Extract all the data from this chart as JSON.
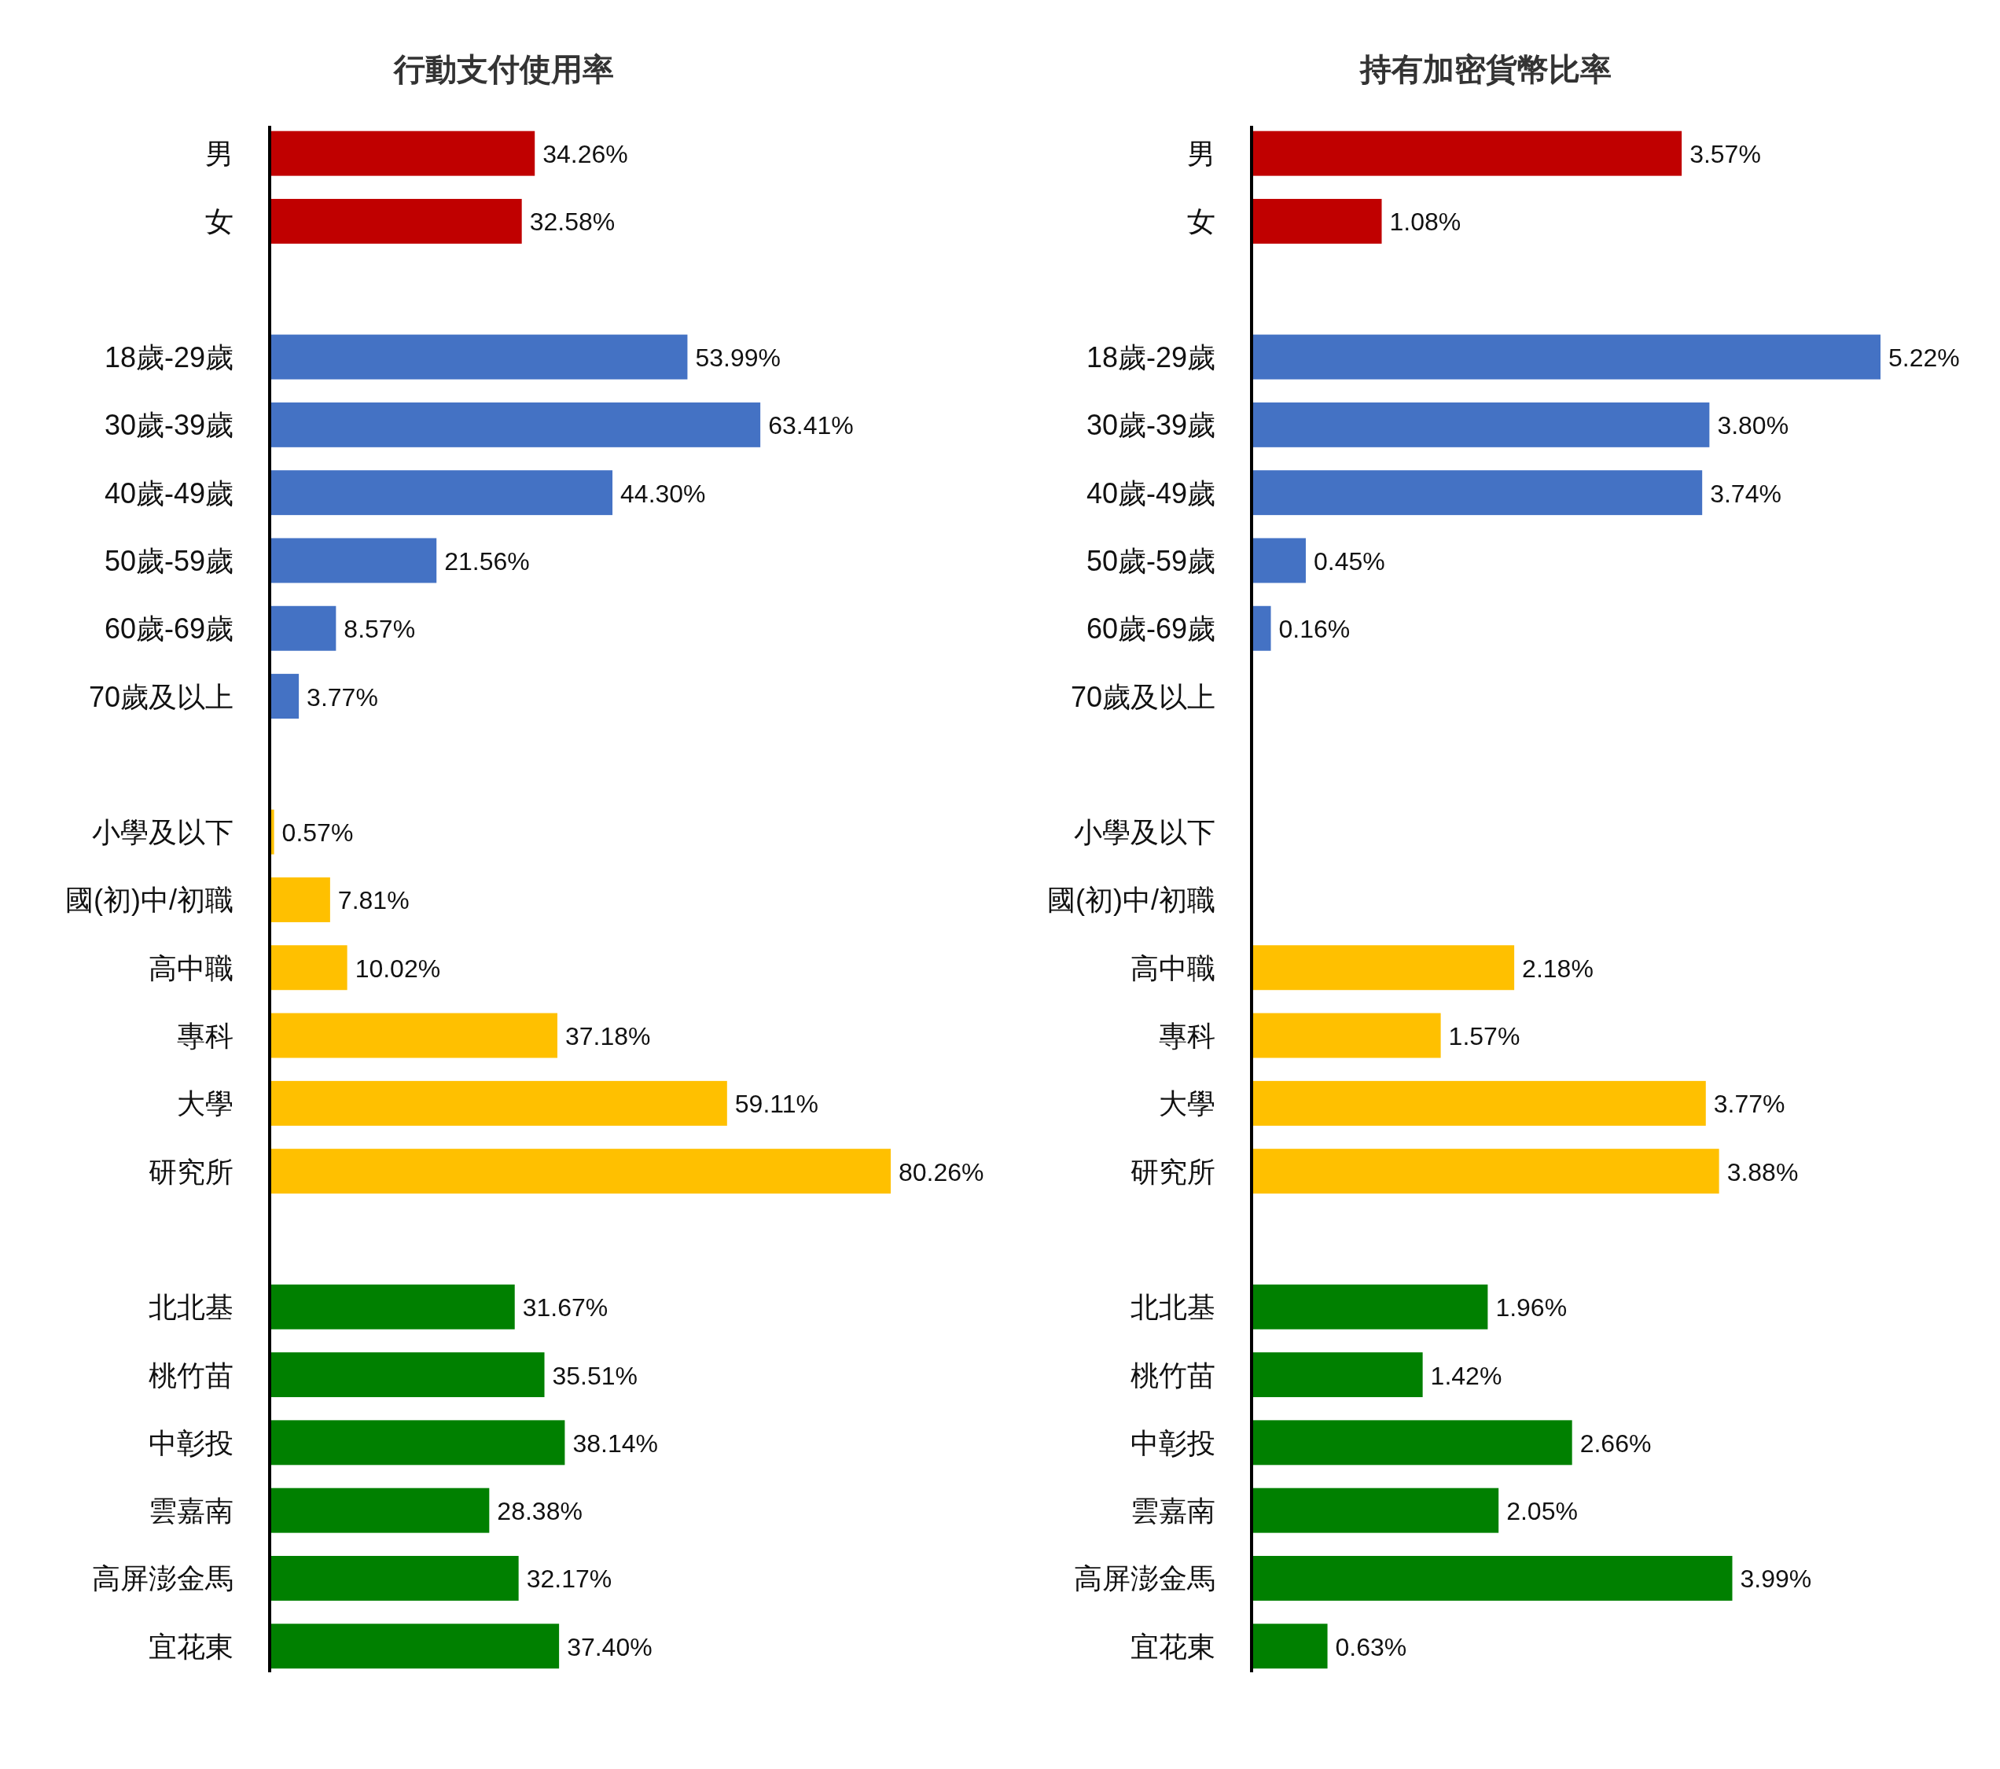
{
  "chart_data": [
    {
      "type": "bar",
      "orientation": "horizontal",
      "title": "行動支付使用率",
      "tick_labels": "y",
      "categories": [
        "男",
        "女",
        null,
        "18歲-29歲",
        "30歲-39歲",
        "40歲-49歲",
        "50歲-59歲",
        "60歲-69歲",
        "70歲及以上",
        null,
        "小學及以下",
        "國(初)中/初職",
        "高中職",
        "專科",
        "大學",
        "研究所",
        null,
        "北北基",
        "桃竹苗",
        "中彰投",
        "雲嘉南",
        "高屏澎金馬",
        "宜花東"
      ],
      "values": [
        34.26,
        32.58,
        null,
        53.99,
        63.41,
        44.3,
        21.56,
        8.57,
        3.77,
        null,
        0.57,
        7.81,
        10.02,
        37.18,
        59.11,
        80.26,
        null,
        31.67,
        35.51,
        38.14,
        28.38,
        32.17,
        37.4
      ],
      "value_labels": [
        "34.26%",
        "32.58%",
        null,
        "53.99%",
        "63.41%",
        "44.30%",
        "21.56%",
        "8.57%",
        "3.77%",
        null,
        "0.57%",
        "7.81%",
        "10.02%",
        "37.18%",
        "59.11%",
        "80.26%",
        null,
        "31.67%",
        "35.51%",
        "38.14%",
        "28.38%",
        "32.17%",
        "37.40%"
      ],
      "colors": [
        "#c00000",
        "#c00000",
        null,
        "#4472c4",
        "#4472c4",
        "#4472c4",
        "#4472c4",
        "#4472c4",
        "#4472c4",
        null,
        "#ffc000",
        "#ffc000",
        "#ffc000",
        "#ffc000",
        "#ffc000",
        "#ffc000",
        null,
        "#008000",
        "#008000",
        "#008000",
        "#008000",
        "#008000",
        "#008000"
      ]
    },
    {
      "type": "bar",
      "orientation": "horizontal",
      "title": "持有加密貨幣比率",
      "tick_labels": "y",
      "categories": [
        "男",
        "女",
        null,
        "18歲-29歲",
        "30歲-39歲",
        "40歲-49歲",
        "50歲-59歲",
        "60歲-69歲",
        "70歲及以上",
        null,
        "小學及以下",
        "國(初)中/初職",
        "高中職",
        "專科",
        "大學",
        "研究所",
        null,
        "北北基",
        "桃竹苗",
        "中彰投",
        "雲嘉南",
        "高屏澎金馬",
        "宜花東"
      ],
      "values": [
        3.57,
        1.08,
        null,
        5.22,
        3.8,
        3.74,
        0.45,
        0.16,
        null,
        null,
        null,
        null,
        2.18,
        1.57,
        3.77,
        3.88,
        null,
        1.96,
        1.42,
        2.66,
        2.05,
        3.99,
        0.63
      ],
      "value_labels": [
        "3.57%",
        "1.08%",
        null,
        "5.22%",
        "3.80%",
        "3.74%",
        "0.45%",
        "0.16%",
        null,
        null,
        null,
        null,
        "2.18%",
        "1.57%",
        "3.77%",
        "3.88%",
        null,
        "1.96%",
        "1.42%",
        "2.66%",
        "2.05%",
        "3.99%",
        "0.63%"
      ],
      "colors": [
        "#c00000",
        "#c00000",
        null,
        "#4472c4",
        "#4472c4",
        "#4472c4",
        "#4472c4",
        "#4472c4",
        null,
        null,
        null,
        null,
        "#ffc000",
        "#ffc000",
        "#ffc000",
        "#ffc000",
        null,
        "#008000",
        "#008000",
        "#008000",
        "#008000",
        "#008000",
        "#008000"
      ]
    }
  ]
}
